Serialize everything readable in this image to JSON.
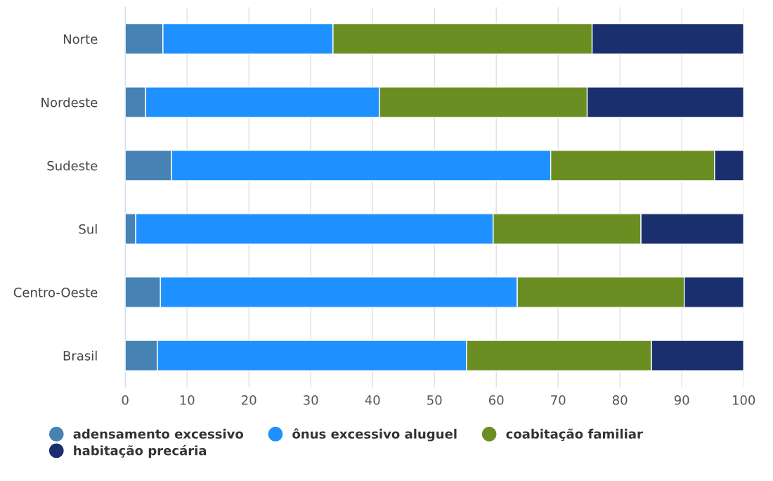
{
  "chart_data": {
    "type": "bar",
    "orientation": "horizontal",
    "stacked": true,
    "categories": [
      "Norte",
      "Nordeste",
      "Sudeste",
      "Sul",
      "Centro-Oeste",
      "Brasil"
    ],
    "series": [
      {
        "name": "adensamento excessivo",
        "color": "#4682b4",
        "values": [
          6.1,
          3.3,
          7.5,
          1.7,
          5.7,
          5.2
        ]
      },
      {
        "name": "ônus excessivo aluguel",
        "color": "#1e90ff",
        "values": [
          27.5,
          37.8,
          61.3,
          57.8,
          57.7,
          50.0
        ]
      },
      {
        "name": "coabitação familiar",
        "color": "#6b8e23",
        "values": [
          41.9,
          33.6,
          26.5,
          23.9,
          27.0,
          29.9
        ]
      },
      {
        "name": "habitação precária",
        "color": "#192f6e",
        "values": [
          24.5,
          25.3,
          4.7,
          16.6,
          9.6,
          14.9
        ]
      }
    ],
    "xlim": [
      0,
      100
    ],
    "xticks": [
      0,
      10,
      20,
      30,
      40,
      50,
      60,
      70,
      80,
      90,
      100
    ],
    "grid": "x",
    "legend": "bottom"
  }
}
